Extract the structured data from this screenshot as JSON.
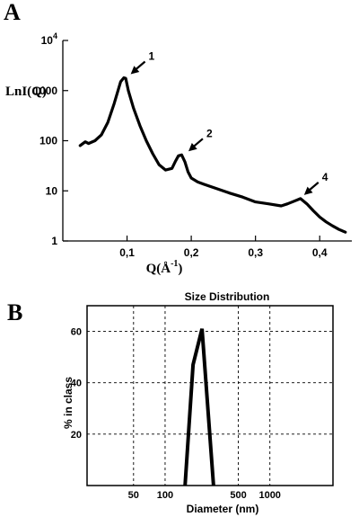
{
  "panels": {
    "a_label": "A",
    "b_label": "B"
  },
  "chart_data": [
    {
      "type": "line",
      "ylabel": "LnI(Q)",
      "xlabel": "Q(Å",
      "xlabel_sup": "-1",
      "xlabel_close": ")",
      "yscale": "log",
      "ylim": [
        1,
        10000
      ],
      "xlim": [
        0,
        0.45
      ],
      "yticks": [
        {
          "value": 1,
          "label": "1"
        },
        {
          "value": 10,
          "label": "10"
        },
        {
          "value": 100,
          "label": "100"
        },
        {
          "value": 1000,
          "label": "1000"
        },
        {
          "value": 10000,
          "label": "10",
          "sup": "4"
        }
      ],
      "xticks": [
        {
          "value": 0.1,
          "label": "0,1"
        },
        {
          "value": 0.2,
          "label": "0,2"
        },
        {
          "value": 0.3,
          "label": "0,3"
        },
        {
          "value": 0.4,
          "label": "0,4"
        }
      ],
      "x": [
        0.027,
        0.035,
        0.04,
        0.05,
        0.06,
        0.07,
        0.08,
        0.09,
        0.095,
        0.098,
        0.102,
        0.11,
        0.12,
        0.13,
        0.14,
        0.15,
        0.16,
        0.17,
        0.175,
        0.18,
        0.185,
        0.19,
        0.195,
        0.2,
        0.21,
        0.22,
        0.24,
        0.26,
        0.28,
        0.3,
        0.32,
        0.34,
        0.35,
        0.36,
        0.37,
        0.38,
        0.39,
        0.4,
        0.41,
        0.42,
        0.43,
        0.44
      ],
      "y": [
        80,
        95,
        88,
        100,
        130,
        230,
        550,
        1500,
        1800,
        1750,
        1000,
        450,
        200,
        100,
        55,
        33,
        26,
        28,
        38,
        50,
        52,
        38,
        24,
        18,
        15,
        13.5,
        11,
        9,
        7.5,
        6,
        5.5,
        5,
        5.5,
        6.2,
        7,
        5.5,
        4,
        3,
        2.4,
        2,
        1.7,
        1.5
      ],
      "annotations": [
        {
          "label": "1",
          "x": 0.1,
          "y": 1800
        },
        {
          "label": "2",
          "x": 0.19,
          "y": 52
        },
        {
          "label": "4",
          "x": 0.37,
          "y": 7
        }
      ]
    },
    {
      "type": "line",
      "title": "Size Distribution",
      "xlabel": "Diameter (nm)",
      "ylabel": "% in class",
      "xscale": "log",
      "xlim": [
        18,
        4000
      ],
      "ylim": [
        0,
        70
      ],
      "xticks": [
        {
          "value": 50,
          "label": "50"
        },
        {
          "value": 100,
          "label": "100"
        },
        {
          "value": 500,
          "label": "500"
        },
        {
          "value": 1000,
          "label": "1000"
        }
      ],
      "yticks": [
        {
          "value": 20,
          "label": "20"
        },
        {
          "value": 40,
          "label": "40"
        },
        {
          "value": 60,
          "label": "60"
        }
      ],
      "x": [
        155,
        185,
        225,
        290
      ],
      "y": [
        0,
        47,
        61,
        0
      ]
    }
  ]
}
